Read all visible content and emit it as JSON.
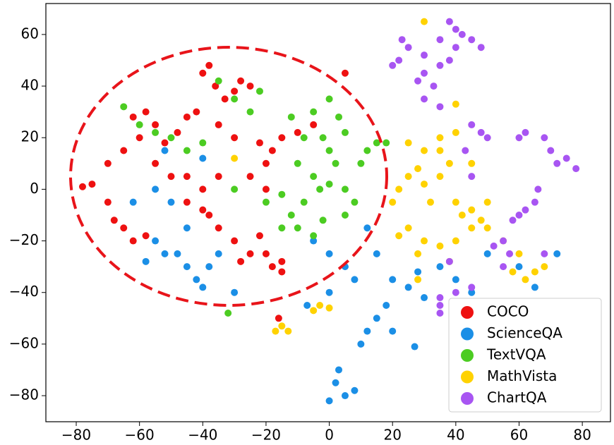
{
  "chart_data": {
    "type": "scatter",
    "xlim": [
      -89.6,
      88.9
    ],
    "ylim": [
      -90.1,
      72
    ],
    "xticks": [
      {
        "value": -80,
        "label": "−80"
      },
      {
        "value": -60,
        "label": "−60"
      },
      {
        "value": -40,
        "label": "−40"
      },
      {
        "value": -20,
        "label": "−20"
      },
      0,
      20,
      40,
      60,
      80
    ],
    "yticks": [
      {
        "value": -80,
        "label": "−80"
      },
      {
        "value": -60,
        "label": "−60"
      },
      {
        "value": -40,
        "label": "−40"
      },
      {
        "value": -20,
        "label": "−20"
      },
      0,
      20,
      40,
      60
    ],
    "grid": false,
    "legend": "lower right",
    "series": [
      {
        "name": "COCO",
        "color": "#ee1111",
        "x": [
          -78,
          -75,
          -70,
          -65,
          -62,
          -58,
          -55,
          -60,
          -52,
          -48,
          -45,
          -42,
          -40,
          -38,
          -36,
          -33,
          -30,
          -28,
          -25,
          -35,
          -30,
          -22,
          -20,
          -18,
          -20,
          -15,
          -10,
          -5,
          -65,
          -62,
          -68,
          -58,
          -45,
          -40,
          -35,
          -38,
          -30,
          -25,
          -20,
          -15,
          -18,
          -28,
          -22,
          -50,
          -45,
          -35,
          -55,
          -70,
          -40,
          -25,
          -15,
          5,
          -16
        ],
        "y": [
          1,
          2,
          10,
          15,
          28,
          30,
          25,
          20,
          18,
          22,
          28,
          30,
          45,
          48,
          40,
          35,
          38,
          42,
          40,
          25,
          20,
          18,
          10,
          15,
          0,
          20,
          22,
          25,
          -15,
          -20,
          -12,
          -18,
          -5,
          -8,
          -15,
          -10,
          -20,
          -25,
          -25,
          -28,
          -30,
          -28,
          -18,
          5,
          5,
          5,
          10,
          -5,
          0,
          5,
          -32,
          45,
          -50
        ]
      },
      {
        "name": "ScienceQA",
        "color": "#1b8fe6",
        "x": [
          -55,
          -52,
          -58,
          -48,
          -45,
          -42,
          -40,
          -38,
          -35,
          -45,
          -50,
          -55,
          -52,
          -40,
          -62,
          -30,
          -5,
          0,
          5,
          8,
          12,
          15,
          20,
          25,
          28,
          30,
          35,
          40,
          45,
          50,
          60,
          65,
          72,
          2,
          5,
          0,
          8,
          3,
          10,
          12,
          15,
          18,
          27,
          20,
          -7,
          0
        ],
        "y": [
          -20,
          -25,
          -28,
          -25,
          -30,
          -35,
          -38,
          -30,
          -25,
          -15,
          -5,
          0,
          15,
          12,
          -5,
          -40,
          -20,
          -25,
          -30,
          -35,
          -15,
          -25,
          -35,
          -38,
          -32,
          -42,
          -30,
          -35,
          -40,
          -25,
          -30,
          -38,
          -25,
          -75,
          -80,
          -82,
          -78,
          -70,
          -60,
          -55,
          -50,
          -45,
          -61,
          -55,
          -45,
          -40
        ]
      },
      {
        "name": "TextVQA",
        "color": "#4ccc22",
        "x": [
          -65,
          -60,
          -55,
          -50,
          -45,
          -40,
          -35,
          -30,
          -25,
          -22,
          -12,
          -8,
          -10,
          -5,
          0,
          -3,
          5,
          -8,
          -12,
          -10,
          -5,
          -2,
          2,
          0,
          -5,
          0,
          5,
          10,
          12,
          15,
          18,
          5,
          -20,
          -15,
          -30,
          -15,
          -32,
          3,
          -2,
          8
        ],
        "y": [
          32,
          25,
          22,
          20,
          15,
          18,
          42,
          35,
          30,
          38,
          28,
          20,
          10,
          5,
          2,
          0,
          0,
          -5,
          -10,
          -15,
          -18,
          -12,
          10,
          15,
          30,
          35,
          22,
          10,
          15,
          18,
          18,
          -10,
          -5,
          -2,
          0,
          -15,
          -48,
          28,
          20,
          -5
        ]
      },
      {
        "name": "MathVista",
        "color": "#ffd200",
        "x": [
          20,
          22,
          25,
          28,
          30,
          32,
          35,
          38,
          35,
          30,
          40,
          42,
          45,
          48,
          40,
          35,
          30,
          25,
          22,
          28,
          45,
          50,
          38,
          55,
          60,
          65,
          62,
          68,
          58,
          -15,
          -17,
          -13,
          -3,
          -5,
          0,
          35,
          40,
          45,
          28,
          30,
          40,
          25,
          -30,
          50
        ],
        "y": [
          -5,
          0,
          5,
          8,
          2,
          -5,
          5,
          10,
          15,
          15,
          -5,
          -10,
          -15,
          -12,
          -20,
          -22,
          -20,
          -15,
          -18,
          -25,
          -8,
          -15,
          -28,
          -20,
          -25,
          -32,
          -35,
          -30,
          -32,
          -53,
          -55,
          -55,
          -45,
          -47,
          -46,
          20,
          22,
          10,
          -35,
          65,
          33,
          18,
          12,
          -5
        ]
      },
      {
        "name": "ChartQA",
        "color": "#a855f2",
        "x": [
          23,
          25,
          22,
          30,
          35,
          30,
          33,
          38,
          40,
          42,
          45,
          48,
          40,
          35,
          38,
          20,
          28,
          30,
          35,
          45,
          48,
          50,
          43,
          45,
          60,
          62,
          68,
          70,
          75,
          72,
          78,
          62,
          60,
          65,
          58,
          55,
          57,
          52,
          66,
          35,
          40,
          35,
          45,
          68,
          55,
          38,
          35
        ],
        "y": [
          58,
          55,
          50,
          52,
          48,
          45,
          40,
          50,
          55,
          60,
          58,
          55,
          62,
          58,
          65,
          48,
          42,
          35,
          32,
          25,
          22,
          20,
          15,
          5,
          20,
          22,
          20,
          15,
          12,
          10,
          8,
          -8,
          -10,
          -5,
          -12,
          -20,
          -25,
          -22,
          0,
          -45,
          -40,
          -48,
          -38,
          -25,
          -30,
          -28,
          -42
        ]
      }
    ]
  }
}
